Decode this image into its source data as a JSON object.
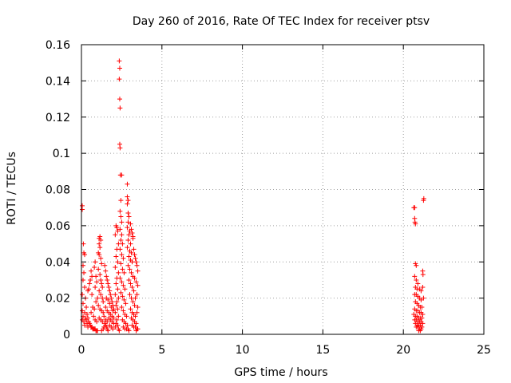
{
  "chart_data": {
    "type": "scatter",
    "title": "Day 260 of 2016, Rate Of TEC Index for receiver ptsv",
    "xlabel": "GPS time / hours",
    "ylabel": "ROTI / TECUs",
    "xlim": [
      0,
      25
    ],
    "ylim": [
      0,
      0.16
    ],
    "x_ticks": [
      0,
      5,
      10,
      15,
      20,
      25
    ],
    "x_tick_labels": [
      "0",
      "5",
      "10",
      "15",
      "20",
      "25"
    ],
    "y_ticks": [
      0,
      0.02,
      0.04,
      0.06,
      0.08,
      0.1,
      0.12,
      0.14,
      0.16
    ],
    "y_tick_labels": [
      "0",
      "0.02",
      "0.04",
      "0.06",
      "0.08",
      "0.1",
      "0.12",
      "0.14",
      "0.16"
    ],
    "grid": true,
    "marker": "+",
    "series": [
      {
        "name": "ROTI",
        "color": "#ff0000",
        "points": [
          [
            0.05,
            0.071
          ],
          [
            0.05,
            0.069
          ],
          [
            0.12,
            0.05
          ],
          [
            0.15,
            0.045
          ],
          [
            0.2,
            0.044
          ],
          [
            0.1,
            0.038
          ],
          [
            0.15,
            0.034
          ],
          [
            0.1,
            0.03
          ],
          [
            0.2,
            0.026
          ],
          [
            0.05,
            0.022
          ],
          [
            0.25,
            0.02
          ],
          [
            0.1,
            0.017
          ],
          [
            0.3,
            0.015
          ],
          [
            0.05,
            0.013
          ],
          [
            0.2,
            0.012
          ],
          [
            0.35,
            0.011
          ],
          [
            0.1,
            0.01
          ],
          [
            0.25,
            0.009
          ],
          [
            0.4,
            0.009
          ],
          [
            0.05,
            0.008
          ],
          [
            0.3,
            0.008
          ],
          [
            0.45,
            0.007
          ],
          [
            0.15,
            0.007
          ],
          [
            0.5,
            0.006
          ],
          [
            0.35,
            0.006
          ],
          [
            0.2,
            0.005
          ],
          [
            0.55,
            0.005
          ],
          [
            0.4,
            0.004
          ],
          [
            0.6,
            0.004
          ],
          [
            0.65,
            0.004
          ],
          [
            0.7,
            0.003
          ],
          [
            0.75,
            0.003
          ],
          [
            0.8,
            0.003
          ],
          [
            0.85,
            0.003
          ],
          [
            0.9,
            0.002
          ],
          [
            0.95,
            0.002
          ],
          [
            1.0,
            0.002
          ],
          [
            0.6,
            0.012
          ],
          [
            0.7,
            0.015
          ],
          [
            0.8,
            0.014
          ],
          [
            0.9,
            0.018
          ],
          [
            1.0,
            0.02
          ],
          [
            0.65,
            0.022
          ],
          [
            0.75,
            0.01
          ],
          [
            0.85,
            0.008
          ],
          [
            0.95,
            0.007
          ],
          [
            0.6,
            0.035
          ],
          [
            0.65,
            0.032
          ],
          [
            0.55,
            0.03
          ],
          [
            0.5,
            0.028
          ],
          [
            0.45,
            0.025
          ],
          [
            0.4,
            0.024
          ],
          [
            0.85,
            0.04
          ],
          [
            0.8,
            0.037
          ],
          [
            0.9,
            0.032
          ],
          [
            0.95,
            0.029
          ],
          [
            0.85,
            0.026
          ],
          [
            1.05,
            0.045
          ],
          [
            1.1,
            0.05
          ],
          [
            1.15,
            0.054
          ],
          [
            1.1,
            0.053
          ],
          [
            1.2,
            0.052
          ],
          [
            1.15,
            0.048
          ],
          [
            1.1,
            0.044
          ],
          [
            1.2,
            0.042
          ],
          [
            1.25,
            0.039
          ],
          [
            1.05,
            0.036
          ],
          [
            1.15,
            0.033
          ],
          [
            1.2,
            0.03
          ],
          [
            1.25,
            0.028
          ],
          [
            1.3,
            0.026
          ],
          [
            1.1,
            0.024
          ],
          [
            1.2,
            0.022
          ],
          [
            1.3,
            0.02
          ],
          [
            1.35,
            0.018
          ],
          [
            1.05,
            0.016
          ],
          [
            1.15,
            0.014
          ],
          [
            1.25,
            0.013
          ],
          [
            1.35,
            0.012
          ],
          [
            1.4,
            0.01
          ],
          [
            1.1,
            0.009
          ],
          [
            1.2,
            0.008
          ],
          [
            1.3,
            0.007
          ],
          [
            1.45,
            0.006
          ],
          [
            1.5,
            0.005
          ],
          [
            1.4,
            0.004
          ],
          [
            1.55,
            0.004
          ],
          [
            1.35,
            0.003
          ],
          [
            1.6,
            0.003
          ],
          [
            1.25,
            0.002
          ],
          [
            1.65,
            0.002
          ],
          [
            1.45,
            0.038
          ],
          [
            1.5,
            0.035
          ],
          [
            1.55,
            0.032
          ],
          [
            1.6,
            0.03
          ],
          [
            1.65,
            0.028
          ],
          [
            1.7,
            0.026
          ],
          [
            1.75,
            0.024
          ],
          [
            1.8,
            0.022
          ],
          [
            1.85,
            0.02
          ],
          [
            1.9,
            0.018
          ],
          [
            1.95,
            0.016
          ],
          [
            2.0,
            0.014
          ],
          [
            1.5,
            0.015
          ],
          [
            1.6,
            0.013
          ],
          [
            1.7,
            0.012
          ],
          [
            1.8,
            0.011
          ],
          [
            1.9,
            0.01
          ],
          [
            2.0,
            0.009
          ],
          [
            1.55,
            0.02
          ],
          [
            1.65,
            0.019
          ],
          [
            1.75,
            0.017
          ],
          [
            1.85,
            0.015
          ],
          [
            1.95,
            0.013
          ],
          [
            1.7,
            0.009
          ],
          [
            1.8,
            0.008
          ],
          [
            1.9,
            0.007
          ],
          [
            2.0,
            0.006
          ],
          [
            1.75,
            0.005
          ],
          [
            1.85,
            0.004
          ],
          [
            1.95,
            0.003
          ],
          [
            1.6,
            0.007
          ],
          [
            1.5,
            0.008
          ],
          [
            2.15,
            0.06
          ],
          [
            2.2,
            0.059
          ],
          [
            2.25,
            0.057
          ],
          [
            2.1,
            0.055
          ],
          [
            2.3,
            0.05
          ],
          [
            2.2,
            0.047
          ],
          [
            2.15,
            0.043
          ],
          [
            2.25,
            0.04
          ],
          [
            2.1,
            0.037
          ],
          [
            2.3,
            0.034
          ],
          [
            2.2,
            0.031
          ],
          [
            2.15,
            0.028
          ],
          [
            2.25,
            0.025
          ],
          [
            2.1,
            0.022
          ],
          [
            2.3,
            0.02
          ],
          [
            2.2,
            0.018
          ],
          [
            2.15,
            0.016
          ],
          [
            2.25,
            0.014
          ],
          [
            2.1,
            0.012
          ],
          [
            2.3,
            0.01
          ],
          [
            2.2,
            0.008
          ],
          [
            2.15,
            0.006
          ],
          [
            2.25,
            0.005
          ],
          [
            2.1,
            0.004
          ],
          [
            2.3,
            0.003
          ],
          [
            2.35,
            0.002
          ],
          [
            2.35,
            0.151
          ],
          [
            2.38,
            0.147
          ],
          [
            2.35,
            0.141
          ],
          [
            2.38,
            0.13
          ],
          [
            2.4,
            0.125
          ],
          [
            2.38,
            0.105
          ],
          [
            2.4,
            0.103
          ],
          [
            2.42,
            0.088
          ],
          [
            2.5,
            0.088
          ],
          [
            2.45,
            0.074
          ],
          [
            2.4,
            0.068
          ],
          [
            2.45,
            0.065
          ],
          [
            2.5,
            0.062
          ],
          [
            2.4,
            0.058
          ],
          [
            2.5,
            0.055
          ],
          [
            2.45,
            0.052
          ],
          [
            2.55,
            0.05
          ],
          [
            2.4,
            0.047
          ],
          [
            2.5,
            0.044
          ],
          [
            2.6,
            0.042
          ],
          [
            2.45,
            0.039
          ],
          [
            2.55,
            0.036
          ],
          [
            2.65,
            0.034
          ],
          [
            2.4,
            0.031
          ],
          [
            2.5,
            0.029
          ],
          [
            2.6,
            0.027
          ],
          [
            2.7,
            0.025
          ],
          [
            2.45,
            0.023
          ],
          [
            2.55,
            0.021
          ],
          [
            2.65,
            0.019
          ],
          [
            2.75,
            0.017
          ],
          [
            2.5,
            0.015
          ],
          [
            2.6,
            0.013
          ],
          [
            2.7,
            0.011
          ],
          [
            2.8,
            0.01
          ],
          [
            2.55,
            0.008
          ],
          [
            2.65,
            0.007
          ],
          [
            2.75,
            0.006
          ],
          [
            2.85,
            0.005
          ],
          [
            2.6,
            0.004
          ],
          [
            2.7,
            0.003
          ],
          [
            2.8,
            0.003
          ],
          [
            2.9,
            0.003
          ],
          [
            2.95,
            0.002
          ],
          [
            2.85,
            0.083
          ],
          [
            2.85,
            0.076
          ],
          [
            2.9,
            0.074
          ],
          [
            2.85,
            0.072
          ],
          [
            2.9,
            0.067
          ],
          [
            2.95,
            0.065
          ],
          [
            2.9,
            0.062
          ],
          [
            2.85,
            0.059
          ],
          [
            3.0,
            0.057
          ],
          [
            2.95,
            0.055
          ],
          [
            2.9,
            0.052
          ],
          [
            3.05,
            0.05
          ],
          [
            2.85,
            0.048
          ],
          [
            3.0,
            0.046
          ],
          [
            3.1,
            0.045
          ],
          [
            2.95,
            0.043
          ],
          [
            3.05,
            0.041
          ],
          [
            3.15,
            0.04
          ],
          [
            2.9,
            0.038
          ],
          [
            3.0,
            0.036
          ],
          [
            3.1,
            0.034
          ],
          [
            3.2,
            0.032
          ],
          [
            2.95,
            0.03
          ],
          [
            3.05,
            0.028
          ],
          [
            3.15,
            0.026
          ],
          [
            3.25,
            0.024
          ],
          [
            3.0,
            0.022
          ],
          [
            3.1,
            0.02
          ],
          [
            3.2,
            0.018
          ],
          [
            3.3,
            0.016
          ],
          [
            3.05,
            0.014
          ],
          [
            3.15,
            0.012
          ],
          [
            3.25,
            0.011
          ],
          [
            3.35,
            0.01
          ],
          [
            3.1,
            0.009
          ],
          [
            3.2,
            0.008
          ],
          [
            3.3,
            0.007
          ],
          [
            3.4,
            0.006
          ],
          [
            3.15,
            0.005
          ],
          [
            3.25,
            0.004
          ],
          [
            3.35,
            0.004
          ],
          [
            3.45,
            0.003
          ],
          [
            3.5,
            0.003
          ],
          [
            3.4,
            0.002
          ],
          [
            3.2,
            0.053
          ],
          [
            3.25,
            0.047
          ],
          [
            3.3,
            0.044
          ],
          [
            3.35,
            0.042
          ],
          [
            3.4,
            0.04
          ],
          [
            3.45,
            0.038
          ],
          [
            3.5,
            0.035
          ],
          [
            3.3,
            0.031
          ],
          [
            3.4,
            0.029
          ],
          [
            3.5,
            0.027
          ],
          [
            3.45,
            0.022
          ],
          [
            3.35,
            0.02
          ],
          [
            3.5,
            0.015
          ],
          [
            3.45,
            0.012
          ],
          [
            3.05,
            0.061
          ],
          [
            3.1,
            0.058
          ],
          [
            3.15,
            0.056
          ],
          [
            3.2,
            0.054
          ],
          [
            20.65,
            0.07
          ],
          [
            20.7,
            0.07
          ],
          [
            20.7,
            0.064
          ],
          [
            20.72,
            0.062
          ],
          [
            20.75,
            0.061
          ],
          [
            20.75,
            0.039
          ],
          [
            20.8,
            0.038
          ],
          [
            20.7,
            0.032
          ],
          [
            20.8,
            0.03
          ],
          [
            20.9,
            0.028
          ],
          [
            20.75,
            0.026
          ],
          [
            20.85,
            0.025
          ],
          [
            21.0,
            0.025
          ],
          [
            21.1,
            0.024
          ],
          [
            20.7,
            0.022
          ],
          [
            20.8,
            0.022
          ],
          [
            20.9,
            0.021
          ],
          [
            21.0,
            0.02
          ],
          [
            21.1,
            0.019
          ],
          [
            20.75,
            0.018
          ],
          [
            20.85,
            0.017
          ],
          [
            20.95,
            0.016
          ],
          [
            21.05,
            0.015
          ],
          [
            21.15,
            0.015
          ],
          [
            20.7,
            0.014
          ],
          [
            20.8,
            0.013
          ],
          [
            20.9,
            0.013
          ],
          [
            21.0,
            0.012
          ],
          [
            21.1,
            0.012
          ],
          [
            21.2,
            0.011
          ],
          [
            20.65,
            0.011
          ],
          [
            20.75,
            0.01
          ],
          [
            20.85,
            0.01
          ],
          [
            20.95,
            0.009
          ],
          [
            21.05,
            0.009
          ],
          [
            21.15,
            0.009
          ],
          [
            20.7,
            0.008
          ],
          [
            20.8,
            0.008
          ],
          [
            20.9,
            0.007
          ],
          [
            21.0,
            0.007
          ],
          [
            21.1,
            0.007
          ],
          [
            21.2,
            0.006
          ],
          [
            20.75,
            0.006
          ],
          [
            20.85,
            0.005
          ],
          [
            20.95,
            0.005
          ],
          [
            21.05,
            0.005
          ],
          [
            21.15,
            0.004
          ],
          [
            20.8,
            0.004
          ],
          [
            20.9,
            0.004
          ],
          [
            21.0,
            0.003
          ],
          [
            21.1,
            0.003
          ],
          [
            20.95,
            0.002
          ],
          [
            21.05,
            0.002
          ],
          [
            21.2,
            0.035
          ],
          [
            21.22,
            0.033
          ],
          [
            21.25,
            0.074
          ],
          [
            21.27,
            0.075
          ],
          [
            21.2,
            0.026
          ],
          [
            21.25,
            0.02
          ]
        ]
      }
    ]
  }
}
